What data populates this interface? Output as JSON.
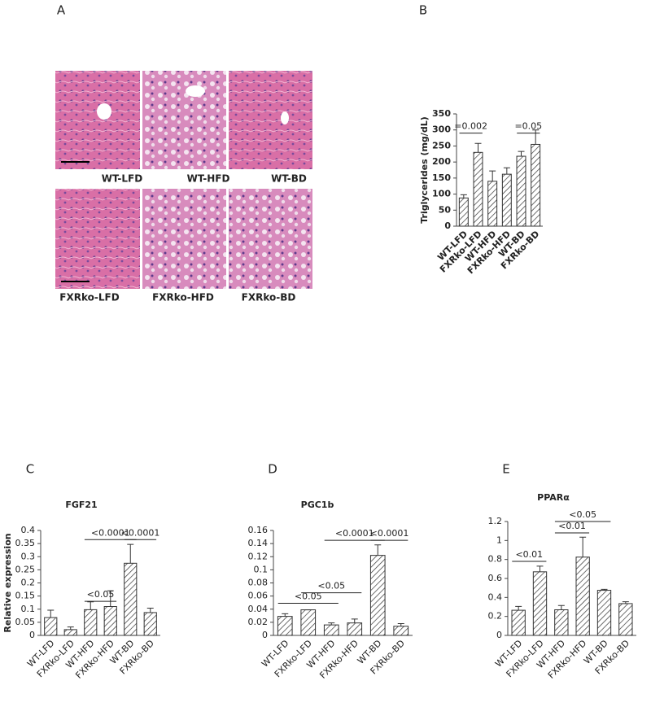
{
  "panel_labels": [
    "A",
    "B",
    "C",
    "D",
    "E"
  ],
  "histology": {
    "labels": [
      "WT-LFD",
      "WT-HFD",
      "WT-BD",
      "FXRko-LFD",
      "FXRko-HFD",
      "FXRko-BD"
    ]
  },
  "chart_data": [
    {
      "type": "bar",
      "y_label": "Triglycerides (mg/dL)",
      "color": "#333333",
      "categories": [
        "WT-LFD",
        "FXRko-LFD",
        "WT-HFD",
        "FXRko-HFD",
        "WT-BD",
        "FXRko-BD"
      ],
      "values": [
        88,
        230,
        140,
        162,
        218,
        255
      ],
      "errors": [
        10,
        28,
        32,
        20,
        15,
        45
      ],
      "ylim": [
        0,
        350
      ],
      "yticks": [
        0,
        50,
        100,
        150,
        200,
        250,
        300,
        350
      ],
      "annotations": [
        {
          "text": "=0.002",
          "from": 0,
          "to": 1,
          "y": 290
        },
        {
          "text": "=0.05",
          "from": 4,
          "to": 5,
          "y": 290
        }
      ]
    },
    {
      "type": "bar",
      "title": "FGF21",
      "y_label": "Relative expression",
      "color": "#333333",
      "categories": [
        "WT-LFD",
        "FXRko-LFD",
        "WT-HFD",
        "FXRko-HFD",
        "WT-BD",
        "FXRko-BD"
      ],
      "values": [
        0.068,
        0.022,
        0.098,
        0.11,
        0.275,
        0.087
      ],
      "errors": [
        0.028,
        0.01,
        0.03,
        0.06,
        0.072,
        0.017
      ],
      "ylim": [
        0,
        0.4
      ],
      "yticks": [
        0,
        0.05,
        0.1,
        0.15,
        0.2,
        0.25,
        0.3,
        0.35,
        0.4
      ],
      "annotations": [
        {
          "text": "<0.05",
          "from": 2,
          "to": 3,
          "y": 0.13
        },
        {
          "text": "<0.0001",
          "from": 2,
          "to": 4,
          "y": 0.365
        },
        {
          "text": "<0.0001",
          "from": 4,
          "to": 5,
          "y": 0.365
        }
      ]
    },
    {
      "type": "bar",
      "title": "PGC1b",
      "color": "#333333",
      "categories": [
        "WT-LFD",
        "FXRko-LFD",
        "WT-HFD",
        "FXRko-HFD",
        "WT-BD",
        "FXRko-BD"
      ],
      "values": [
        0.029,
        0.039,
        0.016,
        0.019,
        0.122,
        0.014
      ],
      "errors": [
        0.004,
        0,
        0.003,
        0.006,
        0.016,
        0.004
      ],
      "ylim": [
        0,
        0.16
      ],
      "yticks": [
        0,
        0.02,
        0.04,
        0.06,
        0.08,
        0.1,
        0.12,
        0.14,
        0.16
      ],
      "annotations": [
        {
          "text": "<0.05",
          "from": 0,
          "to": 2,
          "y": 0.049
        },
        {
          "text": "<0.05",
          "from": 1,
          "to": 3,
          "y": 0.065
        },
        {
          "text": "<0.0001",
          "from": 2,
          "to": 4,
          "y": 0.145
        },
        {
          "text": "<0.0001",
          "from": 4,
          "to": 5,
          "y": 0.145
        }
      ]
    },
    {
      "type": "bar",
      "title": "PPARα",
      "color": "#333333",
      "categories": [
        "WT-LFD",
        "FXRko-LFD",
        "WT-HFD",
        "FXRko-HFD",
        "WT-BD",
        "FXRko-BD"
      ],
      "values": [
        0.265,
        0.67,
        0.27,
        0.825,
        0.475,
        0.335
      ],
      "errors": [
        0.04,
        0.06,
        0.045,
        0.21,
        0.01,
        0.02
      ],
      "ylim": [
        0,
        1.2
      ],
      "yticks": [
        0,
        0.2,
        0.4,
        0.6,
        0.8,
        1,
        1.2
      ],
      "annotations": [
        {
          "text": "<0.01",
          "from": 0,
          "to": 1,
          "y": 0.78
        },
        {
          "text": "<0.01",
          "from": 2,
          "to": 3,
          "y": 1.08
        },
        {
          "text": "<0.05",
          "from": 2,
          "to": 4,
          "y": 1.2
        }
      ]
    }
  ]
}
